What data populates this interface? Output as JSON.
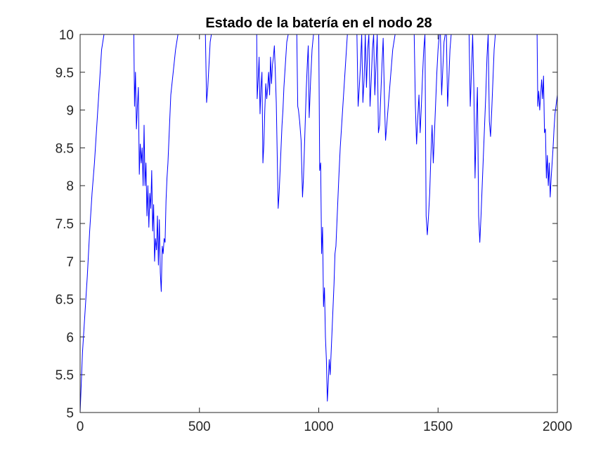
{
  "chart_data": {
    "type": "line",
    "title": "Estado de la batería en el nodo 28",
    "xlabel": "",
    "ylabel": "",
    "xlim": [
      0,
      2000
    ],
    "ylim": [
      5,
      10
    ],
    "xticks": [
      0,
      500,
      1000,
      1500,
      2000
    ],
    "yticks": [
      5,
      5.5,
      6,
      6.5,
      7,
      7.5,
      8,
      8.5,
      9,
      9.5,
      10
    ],
    "xtick_labels": [
      "0",
      "500",
      "1000",
      "1500",
      "2000"
    ],
    "ytick_labels": [
      "5",
      "5.5",
      "6",
      "6.5",
      "7",
      "7.5",
      "8",
      "8.5",
      "9",
      "9.5",
      "10"
    ],
    "grid": false,
    "box": true,
    "line_color": "#0000ff",
    "axis_color": "#262626",
    "series": [
      {
        "x": [
          0,
          10,
          20,
          30,
          40,
          50,
          60,
          70,
          80,
          90,
          100,
          120,
          140,
          160,
          180,
          200,
          225,
          228,
          232,
          236,
          240,
          244,
          248,
          252,
          256,
          260,
          264,
          268,
          272,
          276,
          280,
          284,
          288,
          292,
          296,
          300,
          304,
          308,
          312,
          316,
          320,
          324,
          328,
          332,
          336,
          340,
          344,
          348,
          352,
          356,
          360,
          364,
          368,
          372,
          376,
          380,
          390,
          400,
          410,
          420,
          430,
          440,
          460,
          480,
          500,
          515,
          525,
          530,
          535,
          540,
          545,
          550,
          555,
          560,
          580,
          620,
          660,
          700,
          740,
          742,
          746,
          750,
          754,
          758,
          762,
          766,
          770,
          774,
          778,
          782,
          786,
          790,
          794,
          798,
          802,
          806,
          810,
          814,
          818,
          822,
          826,
          830,
          834,
          838,
          842,
          846,
          850,
          854,
          860,
          866,
          872,
          878,
          884,
          890,
          896,
          902,
          908,
          912,
          915,
          920,
          926,
          932,
          936,
          940,
          944,
          948,
          952,
          956,
          960,
          966,
          972,
          978,
          984,
          990,
          996,
          1000,
          1004,
          1008,
          1012,
          1016,
          1020,
          1024,
          1028,
          1032,
          1036,
          1040,
          1044,
          1048,
          1052,
          1056,
          1060,
          1064,
          1068,
          1072,
          1076,
          1080,
          1084,
          1090,
          1100,
          1110,
          1120,
          1130,
          1140,
          1150,
          1160,
          1165,
          1170,
          1175,
          1180,
          1185,
          1190,
          1195,
          1200,
          1205,
          1210,
          1215,
          1220,
          1225,
          1230,
          1235,
          1240,
          1245,
          1250,
          1255,
          1260,
          1265,
          1270,
          1275,
          1280,
          1290,
          1300,
          1310,
          1320,
          1330,
          1340,
          1350,
          1360,
          1380,
          1400,
          1405,
          1410,
          1415,
          1420,
          1425,
          1430,
          1435,
          1440,
          1445,
          1450,
          1455,
          1460,
          1465,
          1470,
          1475,
          1480,
          1485,
          1490,
          1495,
          1500,
          1505,
          1510,
          1515,
          1520,
          1525,
          1530,
          1535,
          1540,
          1545,
          1550,
          1555,
          1560,
          1565,
          1570,
          1580,
          1600,
          1620,
          1630,
          1635,
          1640,
          1645,
          1650,
          1655,
          1660,
          1665,
          1670,
          1675,
          1680,
          1685,
          1690,
          1695,
          1700,
          1705,
          1710,
          1715,
          1720,
          1725,
          1730,
          1735,
          1740,
          1745,
          1750,
          1770,
          1800,
          1830,
          1860,
          1890,
          1915,
          1918,
          1922,
          1926,
          1930,
          1934,
          1938,
          1942,
          1946,
          1950,
          1954,
          1958,
          1962,
          1966,
          1970,
          1974,
          1978,
          1982,
          1986,
          1990,
          1994,
          1998,
          2000
        ],
        "y": [
          5.0,
          5.8,
          6.3,
          6.8,
          7.4,
          7.9,
          8.3,
          8.8,
          9.3,
          9.8,
          10.0,
          10.0,
          10.0,
          10.0,
          10.0,
          10.0,
          10.0,
          9.05,
          9.5,
          8.75,
          9.05,
          9.3,
          8.15,
          8.55,
          8.3,
          8.5,
          8.0,
          8.8,
          8.0,
          8.3,
          7.6,
          8.0,
          7.45,
          7.9,
          7.7,
          8.2,
          7.4,
          7.75,
          7.0,
          7.3,
          7.15,
          7.6,
          6.95,
          7.55,
          6.85,
          6.6,
          7.2,
          7.1,
          7.3,
          7.25,
          7.8,
          8.1,
          8.3,
          8.6,
          8.9,
          9.2,
          9.5,
          9.8,
          10.0,
          10.0,
          10.0,
          10.0,
          10.0,
          10.0,
          10.0,
          10.0,
          10.0,
          9.1,
          9.3,
          9.6,
          9.9,
          10.0,
          10.0,
          10.0,
          10.0,
          10.0,
          10.0,
          10.0,
          10.0,
          9.15,
          9.4,
          9.7,
          8.95,
          9.3,
          9.5,
          8.3,
          8.55,
          9.0,
          9.35,
          9.15,
          9.3,
          9.5,
          9.2,
          9.7,
          9.35,
          9.6,
          9.7,
          9.85,
          9.5,
          9.1,
          8.4,
          7.7,
          7.9,
          8.2,
          8.5,
          8.8,
          9.0,
          9.3,
          9.6,
          9.9,
          10.0,
          10.0,
          10.0,
          10.0,
          10.0,
          10.0,
          10.0,
          9.05,
          9.0,
          8.85,
          8.6,
          7.85,
          8.1,
          8.5,
          8.9,
          9.3,
          9.6,
          9.85,
          8.9,
          9.4,
          9.8,
          10.0,
          10.0,
          10.0,
          10.0,
          10.0,
          8.2,
          8.3,
          7.1,
          7.45,
          6.4,
          6.65,
          6.0,
          5.7,
          5.15,
          5.4,
          5.7,
          5.5,
          5.8,
          6.1,
          6.4,
          6.7,
          7.1,
          7.2,
          7.5,
          7.8,
          8.1,
          8.5,
          9.0,
          9.5,
          10.0,
          10.0,
          10.0,
          10.0,
          10.0,
          9.05,
          9.3,
          9.6,
          10.0,
          9.1,
          9.4,
          10.0,
          9.3,
          9.8,
          10.0,
          9.05,
          9.4,
          9.8,
          10.0,
          9.2,
          9.6,
          10.0,
          8.7,
          8.8,
          9.2,
          9.6,
          9.95,
          9.2,
          8.6,
          9.0,
          9.4,
          9.8,
          10.0,
          10.0,
          10.0,
          10.0,
          10.0,
          10.0,
          10.0,
          9.05,
          8.55,
          8.9,
          9.2,
          8.7,
          9.05,
          9.45,
          9.8,
          10.0,
          7.6,
          7.35,
          7.6,
          7.9,
          8.4,
          8.8,
          8.3,
          8.7,
          9.1,
          9.5,
          9.8,
          10.0,
          10.0,
          9.2,
          9.55,
          9.9,
          10.0,
          10.0,
          9.05,
          9.4,
          9.8,
          10.0,
          10.0,
          10.0,
          10.0,
          10.0,
          10.0,
          10.0,
          10.0,
          9.05,
          9.5,
          10.0,
          9.3,
          8.1,
          8.8,
          9.3,
          7.6,
          7.25,
          7.6,
          8.0,
          8.4,
          8.8,
          9.2,
          9.7,
          10.0,
          8.85,
          8.65,
          9.0,
          9.4,
          9.8,
          10.0,
          10.0,
          10.0,
          10.0,
          10.0,
          10.0,
          10.0,
          10.0,
          10.0,
          9.05,
          9.25,
          9.0,
          9.2,
          9.4,
          9.15,
          9.45,
          8.7,
          8.75,
          8.1,
          8.4,
          8.0,
          8.3,
          7.85,
          8.1,
          8.3,
          8.5,
          8.75,
          8.95,
          9.05,
          9.15,
          9.2
        ]
      }
    ]
  }
}
